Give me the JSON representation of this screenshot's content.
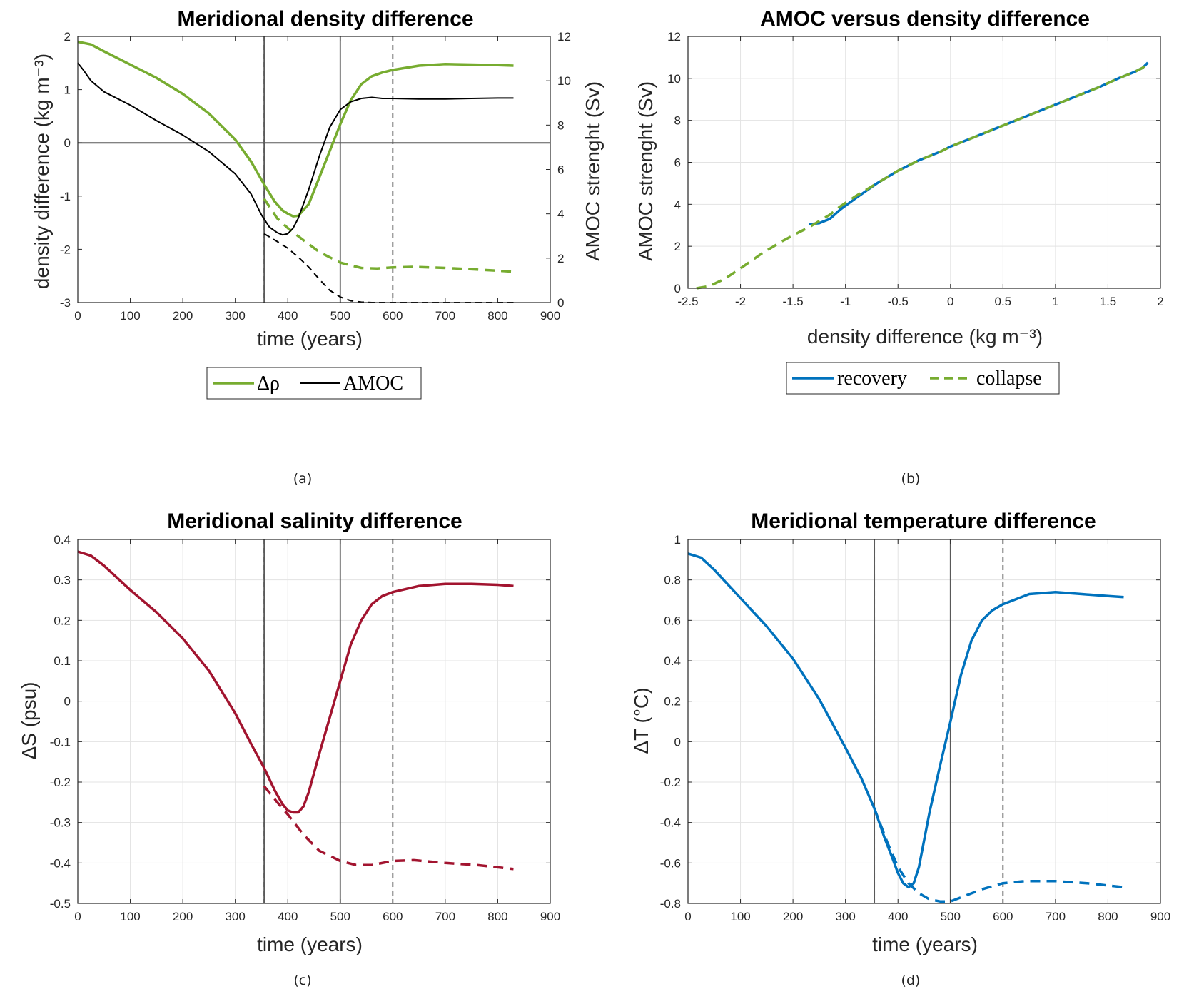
{
  "figure": {
    "captions": [
      "(a)",
      "(b)",
      "(c)",
      "(d)"
    ]
  },
  "colors": {
    "green": "#77ac30",
    "black": "#000000",
    "blue": "#0072bd",
    "crimson": "#a2142f",
    "grid": "#e3e3e3",
    "vline": "#595959"
  },
  "chart_data": [
    {
      "id": "a",
      "type": "line",
      "title": "Meridional density difference",
      "xlabel": "time (years)",
      "ylabel": "density difference (kg m⁻³)",
      "y2label": "AMOC strenght (Sv)",
      "xlim": [
        0,
        900
      ],
      "ylim": [
        -3,
        2
      ],
      "y2lim": [
        0,
        12
      ],
      "xticks": [
        0,
        100,
        200,
        300,
        400,
        500,
        600,
        700,
        800,
        900
      ],
      "yticks": [
        -3,
        -2,
        -1,
        0,
        1,
        2
      ],
      "y2ticks": [
        0,
        2,
        4,
        6,
        8,
        10,
        12
      ],
      "grid": false,
      "hline_y": 0,
      "vlines": [
        {
          "x": 355,
          "style": "solid"
        },
        {
          "x": 355,
          "style": "dashed"
        },
        {
          "x": 500,
          "style": "solid"
        },
        {
          "x": 600,
          "style": "dashed"
        }
      ],
      "legend": {
        "placement": "bottom",
        "entries": [
          "Δρ",
          "AMOC"
        ]
      },
      "series": [
        {
          "name": "Δρ",
          "axis": "left",
          "color": "green",
          "dash": false,
          "x": [
            0,
            25,
            50,
            100,
            150,
            200,
            250,
            300,
            330,
            355,
            375,
            390,
            400,
            410,
            420,
            440,
            460,
            480,
            500,
            520,
            540,
            560,
            580,
            600,
            650,
            700,
            750,
            800,
            830
          ],
          "y": [
            1.9,
            1.85,
            1.72,
            1.47,
            1.22,
            0.92,
            0.55,
            0.06,
            -0.35,
            -0.78,
            -1.1,
            -1.27,
            -1.33,
            -1.38,
            -1.37,
            -1.15,
            -0.65,
            -0.15,
            0.35,
            0.8,
            1.1,
            1.25,
            1.32,
            1.37,
            1.45,
            1.48,
            1.47,
            1.46,
            1.45
          ]
        },
        {
          "name": "Δρ collapse",
          "axis": "left",
          "color": "green",
          "dash": true,
          "x": [
            355,
            380,
            400,
            430,
            460,
            500,
            540,
            570,
            600,
            640,
            700,
            760,
            830
          ],
          "y": [
            -1.05,
            -1.42,
            -1.6,
            -1.83,
            -2.05,
            -2.25,
            -2.35,
            -2.36,
            -2.34,
            -2.33,
            -2.35,
            -2.38,
            -2.42
          ]
        },
        {
          "name": "AMOC",
          "axis": "right",
          "color": "black",
          "dash": false,
          "x": [
            0,
            10,
            25,
            50,
            100,
            150,
            200,
            250,
            300,
            330,
            350,
            365,
            380,
            390,
            400,
            410,
            420,
            440,
            460,
            480,
            500,
            520,
            540,
            560,
            580,
            600,
            650,
            700,
            750,
            800,
            830
          ],
          "y": [
            10.8,
            10.5,
            10.0,
            9.5,
            8.9,
            8.2,
            7.55,
            6.8,
            5.8,
            4.9,
            3.95,
            3.4,
            3.15,
            3.05,
            3.1,
            3.35,
            3.8,
            5.1,
            6.6,
            7.9,
            8.7,
            9.05,
            9.2,
            9.25,
            9.2,
            9.2,
            9.18,
            9.18,
            9.2,
            9.22,
            9.22
          ]
        },
        {
          "name": "AMOC collapse",
          "axis": "right",
          "color": "black",
          "dash": true,
          "x": [
            355,
            380,
            400,
            420,
            440,
            460,
            480,
            500,
            520,
            540,
            560,
            600,
            700,
            830
          ],
          "y": [
            3.1,
            2.75,
            2.45,
            2.05,
            1.6,
            1.05,
            0.55,
            0.25,
            0.08,
            0.02,
            0.0,
            0.0,
            0.0,
            0.0
          ]
        }
      ]
    },
    {
      "id": "b",
      "type": "line",
      "title": "AMOC versus density difference",
      "xlabel": "density difference (kg m⁻³)",
      "ylabel": "AMOC strenght (Sv)",
      "xlim": [
        -2.5,
        2
      ],
      "ylim": [
        0,
        12
      ],
      "xticks": [
        -2.5,
        -2,
        -1.5,
        -1,
        -0.5,
        0,
        0.5,
        1,
        1.5,
        2
      ],
      "yticks": [
        0,
        2,
        4,
        6,
        8,
        10,
        12
      ],
      "grid": true,
      "legend": {
        "placement": "bottom",
        "entries": [
          "recovery",
          "collapse"
        ]
      },
      "series": [
        {
          "name": "recovery",
          "color": "blue",
          "dash": false,
          "x": [
            -1.35,
            -1.25,
            -1.15,
            -1.05,
            -0.9,
            -0.7,
            -0.5,
            -0.3,
            -0.1,
            0.0,
            0.2,
            0.5,
            0.8,
            1.1,
            1.4,
            1.6,
            1.75,
            1.83,
            1.88
          ],
          "y": [
            3.05,
            3.1,
            3.3,
            3.75,
            4.3,
            5.0,
            5.6,
            6.1,
            6.5,
            6.75,
            7.15,
            7.75,
            8.35,
            8.95,
            9.55,
            10.0,
            10.3,
            10.5,
            10.75
          ]
        },
        {
          "name": "collapse",
          "color": "green",
          "dash": true,
          "x": [
            -2.42,
            -2.3,
            -2.15,
            -2.0,
            -1.8,
            -1.6,
            -1.45,
            -1.35,
            -1.25,
            -1.15,
            -1.05,
            -0.9,
            -0.7,
            -0.5,
            -0.3,
            -0.1,
            0.0,
            0.2,
            0.5,
            0.8,
            1.1,
            1.4,
            1.6,
            1.75,
            1.83,
            1.88
          ],
          "y": [
            0.0,
            0.1,
            0.45,
            0.95,
            1.65,
            2.25,
            2.65,
            2.9,
            3.2,
            3.5,
            3.9,
            4.4,
            5.0,
            5.6,
            6.1,
            6.5,
            6.75,
            7.15,
            7.75,
            8.35,
            8.95,
            9.55,
            10.0,
            10.3,
            10.5,
            10.75
          ]
        }
      ]
    },
    {
      "id": "c",
      "type": "line",
      "title": "Meridional salinity difference",
      "xlabel": "time (years)",
      "ylabel": "ΔS (psu)",
      "xlim": [
        0,
        900
      ],
      "ylim": [
        -0.5,
        0.4
      ],
      "xticks": [
        0,
        100,
        200,
        300,
        400,
        500,
        600,
        700,
        800,
        900
      ],
      "yticks": [
        -0.5,
        -0.4,
        -0.3,
        -0.2,
        -0.1,
        0,
        0.1,
        0.2,
        0.3,
        0.4
      ],
      "grid": true,
      "vlines": [
        {
          "x": 355,
          "style": "solid"
        },
        {
          "x": 355,
          "style": "dashed"
        },
        {
          "x": 500,
          "style": "solid"
        },
        {
          "x": 600,
          "style": "dashed"
        }
      ],
      "series": [
        {
          "color": "crimson",
          "dash": false,
          "x": [
            0,
            25,
            50,
            100,
            150,
            200,
            250,
            300,
            330,
            355,
            375,
            390,
            400,
            410,
            420,
            430,
            440,
            460,
            480,
            500,
            520,
            540,
            560,
            580,
            600,
            650,
            700,
            750,
            800,
            830
          ],
          "y": [
            0.37,
            0.36,
            0.335,
            0.275,
            0.22,
            0.155,
            0.075,
            -0.03,
            -0.105,
            -0.165,
            -0.22,
            -0.255,
            -0.27,
            -0.275,
            -0.275,
            -0.26,
            -0.225,
            -0.13,
            -0.04,
            0.05,
            0.14,
            0.2,
            0.24,
            0.26,
            0.27,
            0.285,
            0.29,
            0.29,
            0.288,
            0.285
          ]
        },
        {
          "color": "crimson",
          "dash": true,
          "x": [
            355,
            380,
            400,
            430,
            460,
            500,
            530,
            560,
            600,
            640,
            700,
            760,
            830
          ],
          "y": [
            -0.21,
            -0.25,
            -0.28,
            -0.33,
            -0.37,
            -0.395,
            -0.405,
            -0.405,
            -0.395,
            -0.393,
            -0.4,
            -0.405,
            -0.415
          ]
        }
      ]
    },
    {
      "id": "d",
      "type": "line",
      "title": "Meridional temperature difference",
      "xlabel": "time (years)",
      "ylabel": "ΔT (°C)",
      "xlim": [
        0,
        900
      ],
      "ylim": [
        -0.8,
        1
      ],
      "xticks": [
        0,
        100,
        200,
        300,
        400,
        500,
        600,
        700,
        800,
        900
      ],
      "yticks": [
        -0.8,
        -0.6,
        -0.4,
        -0.2,
        0,
        0.2,
        0.4,
        0.6,
        0.8,
        1
      ],
      "grid": true,
      "vlines": [
        {
          "x": 355,
          "style": "solid"
        },
        {
          "x": 355,
          "style": "dashed"
        },
        {
          "x": 500,
          "style": "solid"
        },
        {
          "x": 600,
          "style": "dashed"
        }
      ],
      "series": [
        {
          "color": "blue",
          "dash": false,
          "x": [
            0,
            25,
            50,
            100,
            150,
            200,
            250,
            300,
            330,
            355,
            375,
            390,
            400,
            410,
            420,
            430,
            440,
            460,
            480,
            500,
            520,
            540,
            560,
            580,
            600,
            650,
            700,
            750,
            800,
            830
          ],
          "y": [
            0.93,
            0.91,
            0.85,
            0.71,
            0.57,
            0.41,
            0.21,
            -0.03,
            -0.18,
            -0.33,
            -0.48,
            -0.58,
            -0.65,
            -0.7,
            -0.72,
            -0.7,
            -0.62,
            -0.35,
            -0.12,
            0.1,
            0.33,
            0.5,
            0.6,
            0.65,
            0.68,
            0.73,
            0.74,
            0.73,
            0.72,
            0.715
          ]
        },
        {
          "color": "blue",
          "dash": true,
          "x": [
            355,
            380,
            400,
            420,
            440,
            460,
            480,
            500,
            530,
            560,
            600,
            640,
            700,
            760,
            830
          ],
          "y": [
            -0.33,
            -0.5,
            -0.62,
            -0.7,
            -0.75,
            -0.78,
            -0.79,
            -0.79,
            -0.76,
            -0.73,
            -0.7,
            -0.69,
            -0.69,
            -0.7,
            -0.72
          ]
        }
      ]
    }
  ]
}
